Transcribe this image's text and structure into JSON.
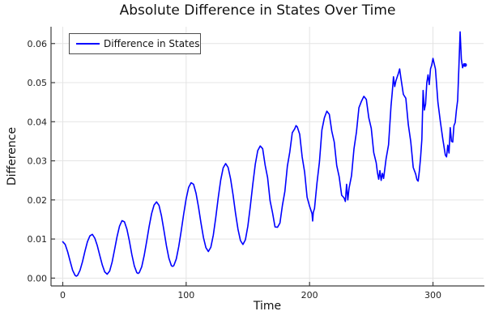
{
  "chart_data": {
    "type": "line",
    "title": "Absolute Difference in States Over Time",
    "xlabel": "Time",
    "ylabel": "Difference",
    "xlim": [
      -9.5,
      341
    ],
    "ylim": [
      -0.002,
      0.0643
    ],
    "xticks": [
      0,
      100,
      200,
      300
    ],
    "yticks": [
      0,
      0.01,
      0.02,
      0.03,
      0.04,
      0.05,
      0.06
    ],
    "xtick_labels": [
      "0",
      "100",
      "200",
      "300"
    ],
    "ytick_labels": [
      "0.00",
      "0.01",
      "0.02",
      "0.03",
      "0.04",
      "0.05",
      "0.06"
    ],
    "grid": true,
    "legend_position": "top-left",
    "series": [
      {
        "name": "Difference in States",
        "color": "#0000ff",
        "end_dot": true,
        "x": [
          0,
          2,
          4,
          6,
          8,
          10,
          11,
          12,
          14,
          16,
          18,
          20,
          22,
          24,
          26,
          28,
          30,
          32,
          34,
          36,
          38,
          40,
          42,
          44,
          46,
          48,
          50,
          52,
          54,
          56,
          58,
          60,
          61,
          62,
          64,
          66,
          68,
          70,
          72,
          74,
          76,
          78,
          80,
          82,
          84,
          86,
          88,
          89,
          90,
          92,
          94,
          96,
          98,
          100,
          102,
          104,
          106,
          108,
          110,
          112,
          114,
          116,
          118,
          120,
          122,
          124,
          126,
          128,
          130,
          132,
          134,
          136,
          138,
          140,
          142,
          144,
          146,
          148,
          150,
          152,
          154,
          156,
          158,
          160,
          162,
          164,
          166,
          168,
          170,
          172,
          174,
          176,
          178,
          180,
          182,
          184,
          186,
          188,
          189,
          190,
          192,
          194,
          196,
          198,
          200,
          202,
          202.5,
          203,
          204,
          206,
          208,
          210,
          212,
          214,
          216,
          218,
          220,
          222,
          224,
          226,
          228,
          229,
          230,
          231,
          232,
          234,
          236,
          238,
          240,
          242,
          244,
          246,
          248,
          250,
          252,
          254,
          255,
          256,
          257,
          258,
          259,
          260,
          262,
          264,
          266,
          267,
          268,
          269,
          270,
          272,
          273,
          274,
          276,
          278,
          280,
          282,
          284,
          286,
          287,
          288,
          289,
          290,
          291,
          292,
          293,
          294,
          295,
          296,
          297,
          298,
          299,
          300,
          302,
          304,
          306,
          308,
          310,
          311,
          312,
          313,
          314,
          315,
          316,
          317,
          318,
          319,
          320,
          321,
          322,
          323,
          324,
          325,
          326
        ],
        "y": [
          0.0093,
          0.0086,
          0.0067,
          0.0043,
          0.002,
          0.0007,
          0.0005,
          0.0007,
          0.002,
          0.0042,
          0.0069,
          0.0093,
          0.0108,
          0.0112,
          0.0102,
          0.0083,
          0.0058,
          0.0034,
          0.0016,
          0.001,
          0.0018,
          0.0041,
          0.0073,
          0.0106,
          0.0133,
          0.0147,
          0.0144,
          0.0125,
          0.0095,
          0.006,
          0.0031,
          0.0014,
          0.0012,
          0.0014,
          0.0029,
          0.0058,
          0.0094,
          0.0132,
          0.0165,
          0.0187,
          0.0195,
          0.0186,
          0.0159,
          0.0122,
          0.0083,
          0.0051,
          0.0032,
          0.003,
          0.0032,
          0.0049,
          0.0081,
          0.0121,
          0.0164,
          0.0203,
          0.0232,
          0.0244,
          0.024,
          0.0217,
          0.0182,
          0.0141,
          0.0104,
          0.0078,
          0.0068,
          0.0079,
          0.011,
          0.0155,
          0.0206,
          0.0251,
          0.0282,
          0.0293,
          0.0283,
          0.0254,
          0.0213,
          0.0166,
          0.0125,
          0.0096,
          0.0086,
          0.0098,
          0.0133,
          0.0184,
          0.024,
          0.0291,
          0.0326,
          0.0338,
          0.0331,
          0.0289,
          0.0257,
          0.0198,
          0.0167,
          0.0131,
          0.013,
          0.0141,
          0.0186,
          0.0222,
          0.0286,
          0.0323,
          0.0372,
          0.0382,
          0.039,
          0.0387,
          0.0368,
          0.031,
          0.0271,
          0.0207,
          0.0184,
          0.0165,
          0.0146,
          0.0168,
          0.0178,
          0.0243,
          0.0297,
          0.0379,
          0.041,
          0.0427,
          0.0419,
          0.0376,
          0.0348,
          0.0288,
          0.0259,
          0.0212,
          0.0205,
          0.0196,
          0.024,
          0.02,
          0.023,
          0.0262,
          0.0331,
          0.0374,
          0.0436,
          0.0452,
          0.0465,
          0.0457,
          0.041,
          0.0383,
          0.0321,
          0.0295,
          0.027,
          0.0253,
          0.0275,
          0.025,
          0.0268,
          0.0255,
          0.0305,
          0.0341,
          0.044,
          0.0475,
          0.0515,
          0.049,
          0.0505,
          0.0524,
          0.0535,
          0.0512,
          0.047,
          0.046,
          0.0393,
          0.0349,
          0.0283,
          0.0266,
          0.0252,
          0.0248,
          0.0275,
          0.031,
          0.0355,
          0.048,
          0.043,
          0.0445,
          0.05,
          0.052,
          0.0495,
          0.0535,
          0.0545,
          0.0562,
          0.0535,
          0.045,
          0.04,
          0.0355,
          0.0315,
          0.031,
          0.034,
          0.032,
          0.0385,
          0.035,
          0.0348,
          0.039,
          0.0398,
          0.043,
          0.0455,
          0.054,
          0.063,
          0.056,
          0.0538,
          0.0548,
          0.0545
        ]
      }
    ],
    "colors": {
      "line": "#0000ff",
      "grid": "#e4e4e4",
      "spine": "#3c3c3c",
      "tick_text": "#1f1f1f",
      "legend_border": "#4d4d4d",
      "background": "#ffffff"
    }
  }
}
